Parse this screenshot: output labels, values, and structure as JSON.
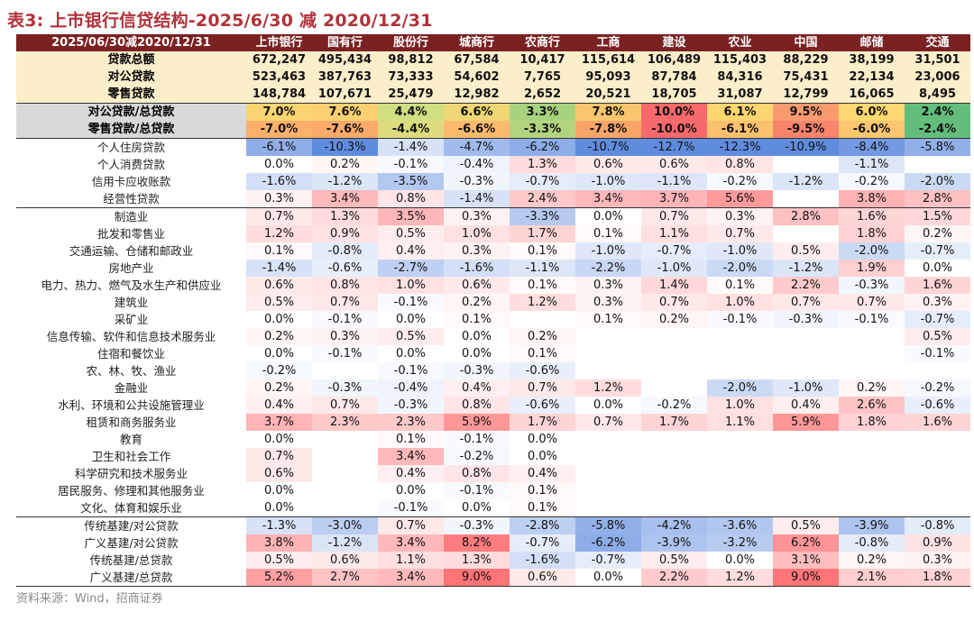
{
  "title": "表3: 上市银行信贷结构-2025/6/30 减 2020/12/31",
  "header_label": "2025/06/30减2020/12/31",
  "columns": [
    "上市银行",
    "国有行",
    "股份行",
    "城商行",
    "农商行",
    "工商",
    "建设",
    "农业",
    "中国",
    "邮储",
    "交通"
  ],
  "amount_rows": [
    {
      "label": "贷款总额",
      "values": [
        "672,247",
        "495,434",
        "98,812",
        "67,584",
        "10,417",
        "115,614",
        "106,489",
        "115,403",
        "88,229",
        "38,199",
        "31,501"
      ]
    },
    {
      "label": "对公贷款",
      "values": [
        "523,463",
        "387,763",
        "73,333",
        "54,602",
        "7,765",
        "95,093",
        "87,784",
        "84,316",
        "75,431",
        "22,134",
        "23,006"
      ]
    },
    {
      "label": "零售贷款",
      "values": [
        "148,784",
        "107,671",
        "25,479",
        "12,982",
        "2,652",
        "20,521",
        "18,705",
        "31,087",
        "12,799",
        "16,065",
        "8,495"
      ]
    }
  ],
  "ratio_rows": [
    {
      "label": "对公贷款/总贷款",
      "values": [
        "7.0%",
        "7.6%",
        "4.4%",
        "6.6%",
        "3.3%",
        "7.8%",
        "10.0%",
        "6.1%",
        "9.5%",
        "6.0%",
        "2.4%"
      ],
      "colors": [
        "#fbd571",
        "#fad071",
        "#cfdf81",
        "#efd776",
        "#a9d27f",
        "#f8c66e",
        "#f8696b",
        "#fdd670",
        "#f99b6f",
        "#fed870",
        "#63be7b"
      ]
    },
    {
      "label": "零售贷款/总贷款",
      "values": [
        "-7.0%",
        "-7.6%",
        "-4.4%",
        "-6.6%",
        "-3.3%",
        "-7.8%",
        "-10.0%",
        "-6.1%",
        "-9.5%",
        "-6.0%",
        "-2.4%"
      ],
      "colors": [
        "#fbb06b",
        "#fbaa6a",
        "#dcdc7f",
        "#fdba6c",
        "#b3d47f",
        "#f9a56a",
        "#f8696b",
        "#fdc16d",
        "#f9846c",
        "#fec66e",
        "#63be7b"
      ]
    }
  ],
  "detail_sections": [
    {
      "rows": [
        {
          "label": "个人住房贷款",
          "values": [
            "-6.1%",
            "-10.3%",
            "-1.4%",
            "-4.7%",
            "-6.2%",
            "-10.7%",
            "-12.7%",
            "-12.3%",
            "-10.9%",
            "-8.4%",
            "-5.8%"
          ]
        },
        {
          "label": "个人消费贷款",
          "values": [
            "0.0%",
            "0.2%",
            "-0.1%",
            "-0.4%",
            "1.3%",
            "0.6%",
            "0.6%",
            "0.8%",
            "",
            "-1.1%",
            ""
          ]
        },
        {
          "label": "信用卡应收账款",
          "values": [
            "-1.6%",
            "-1.2%",
            "-3.5%",
            "-0.3%",
            "-0.7%",
            "-1.0%",
            "-1.1%",
            "-0.2%",
            "-1.2%",
            "-0.2%",
            "-2.0%"
          ]
        },
        {
          "label": "经营性贷款",
          "values": [
            "0.3%",
            "3.4%",
            "0.8%",
            "-1.4%",
            "2.4%",
            "3.4%",
            "3.7%",
            "5.6%",
            "",
            "3.8%",
            "2.8%"
          ]
        }
      ]
    },
    {
      "rows": [
        {
          "label": "制造业",
          "values": [
            "0.7%",
            "1.3%",
            "3.5%",
            "0.3%",
            "-3.3%",
            "0.0%",
            "0.7%",
            "0.3%",
            "2.8%",
            "1.6%",
            "1.5%"
          ]
        },
        {
          "label": "批发和零售业",
          "values": [
            "1.2%",
            "0.9%",
            "0.5%",
            "1.0%",
            "1.7%",
            "0.1%",
            "1.1%",
            "0.7%",
            "",
            "1.8%",
            "0.2%"
          ]
        },
        {
          "label": "交通运输、仓储和邮政业",
          "values": [
            "0.1%",
            "-0.8%",
            "0.4%",
            "0.3%",
            "0.1%",
            "-1.0%",
            "-0.7%",
            "-1.0%",
            "0.5%",
            "-2.0%",
            "-0.7%"
          ]
        },
        {
          "label": "房地产业",
          "values": [
            "-1.4%",
            "-0.6%",
            "-2.7%",
            "-1.6%",
            "-1.1%",
            "-2.2%",
            "-1.0%",
            "-2.0%",
            "-1.2%",
            "1.9%",
            "0.0%"
          ]
        },
        {
          "label": "电力、热力、燃气及水生产和供应业",
          "values": [
            "0.6%",
            "0.8%",
            "1.0%",
            "0.6%",
            "0.1%",
            "0.3%",
            "1.4%",
            "0.1%",
            "2.2%",
            "-0.3%",
            "1.6%"
          ]
        },
        {
          "label": "建筑业",
          "values": [
            "0.5%",
            "0.7%",
            "-0.1%",
            "0.2%",
            "1.2%",
            "0.3%",
            "0.7%",
            "1.0%",
            "0.7%",
            "0.7%",
            "0.3%"
          ]
        },
        {
          "label": "采矿业",
          "values": [
            "0.0%",
            "-0.1%",
            "0.0%",
            "0.1%",
            "",
            "0.1%",
            "0.2%",
            "-0.1%",
            "-0.3%",
            "-0.1%",
            "-0.7%"
          ]
        },
        {
          "label": "信息传输、软件和信息技术服务业",
          "values": [
            "0.2%",
            "0.3%",
            "0.5%",
            "0.0%",
            "0.2%",
            "",
            "",
            "",
            "",
            "",
            "0.5%"
          ]
        },
        {
          "label": "住宿和餐饮业",
          "values": [
            "0.0%",
            "-0.1%",
            "0.0%",
            "0.0%",
            "0.1%",
            "",
            "",
            "",
            "",
            "",
            "-0.1%"
          ]
        },
        {
          "label": "农、林、牧、渔业",
          "values": [
            "-0.2%",
            "",
            "-0.1%",
            "-0.3%",
            "-0.6%",
            "",
            "",
            "",
            "",
            "",
            ""
          ]
        },
        {
          "label": "金融业",
          "values": [
            "0.2%",
            "-0.3%",
            "-0.4%",
            "0.4%",
            "0.7%",
            "1.2%",
            "",
            "-2.0%",
            "-1.0%",
            "0.2%",
            "-0.2%"
          ]
        },
        {
          "label": "水利、环境和公共设施管理业",
          "values": [
            "0.4%",
            "0.7%",
            "-0.3%",
            "0.8%",
            "-0.6%",
            "0.0%",
            "-0.2%",
            "1.0%",
            "0.4%",
            "2.6%",
            "-0.6%"
          ]
        },
        {
          "label": "租赁和商务服务业",
          "values": [
            "3.7%",
            "2.3%",
            "2.3%",
            "5.9%",
            "1.7%",
            "0.7%",
            "1.7%",
            "1.1%",
            "5.9%",
            "1.8%",
            "1.6%"
          ]
        },
        {
          "label": "教育",
          "values": [
            "0.0%",
            "",
            "0.1%",
            "-0.1%",
            "0.0%",
            "",
            "",
            "",
            "",
            "",
            ""
          ]
        },
        {
          "label": "卫生和社会工作",
          "values": [
            "0.7%",
            "",
            "3.4%",
            "-0.2%",
            "0.0%",
            "",
            "",
            "",
            "",
            "",
            ""
          ]
        },
        {
          "label": "科学研究和技术服务业",
          "values": [
            "0.6%",
            "",
            "0.4%",
            "0.8%",
            "0.4%",
            "",
            "",
            "",
            "",
            "",
            ""
          ]
        },
        {
          "label": "居民服务、修理和其他服务业",
          "values": [
            "0.0%",
            "",
            "0.0%",
            "-0.1%",
            "0.1%",
            "",
            "",
            "",
            "",
            "",
            ""
          ]
        },
        {
          "label": "文化、体育和娱乐业",
          "values": [
            "0.0%",
            "",
            "-0.1%",
            "0.0%",
            "0.1%",
            "",
            "",
            "",
            "",
            "",
            ""
          ]
        }
      ]
    },
    {
      "rows": [
        {
          "label": "传统基建/对公贷款",
          "values": [
            "-1.3%",
            "-3.0%",
            "0.7%",
            "-0.3%",
            "-2.8%",
            "-5.8%",
            "-4.2%",
            "-3.6%",
            "0.5%",
            "-3.9%",
            "-0.8%"
          ]
        },
        {
          "label": "广义基建/对公贷款",
          "values": [
            "3.8%",
            "-1.2%",
            "3.4%",
            "8.2%",
            "-0.7%",
            "-6.2%",
            "-3.9%",
            "-3.2%",
            "6.2%",
            "-0.8%",
            "0.9%"
          ]
        },
        {
          "label": "传统基建/总贷款",
          "values": [
            "0.5%",
            "0.6%",
            "1.1%",
            "1.3%",
            "-1.6%",
            "-0.7%",
            "0.5%",
            "0.0%",
            "3.1%",
            "0.2%",
            "0.3%"
          ]
        },
        {
          "label": "广义基建/总贷款",
          "values": [
            "5.2%",
            "2.7%",
            "3.4%",
            "9.0%",
            "0.6%",
            "0.0%",
            "2.2%",
            "1.2%",
            "9.0%",
            "2.1%",
            "1.8%"
          ]
        }
      ]
    }
  ],
  "source": "资料来源：Wind，招商证券"
}
